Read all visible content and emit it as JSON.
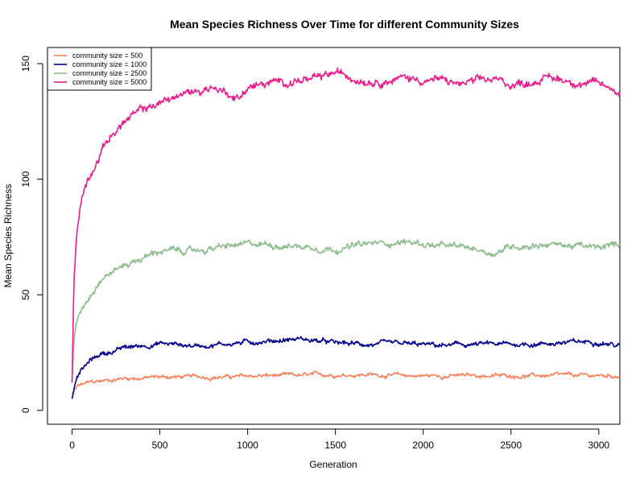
{
  "chart_data": {
    "type": "line",
    "title": "Mean Species Richness Over Time for different Community Sizes",
    "xlabel": "Generation",
    "ylabel": "Mean Species Richness",
    "xlim": [
      -140,
      3120
    ],
    "ylim": [
      -6,
      157
    ],
    "x_ticks": [
      0,
      500,
      1000,
      1500,
      2000,
      2500,
      3000
    ],
    "y_ticks": [
      0,
      50,
      100,
      150
    ],
    "grid": false,
    "legend_position": "top-left",
    "series": [
      {
        "name": "community size = 500",
        "color": "#F4845F",
        "x": [
          0,
          25,
          50,
          100,
          150,
          200,
          300,
          400,
          500,
          700,
          900,
          1100,
          1300,
          1500,
          1700,
          1900,
          2100,
          2300,
          2500,
          2700,
          2900,
          3000,
          3120
        ],
        "values": [
          7,
          10,
          11,
          12,
          12.5,
          13,
          14,
          14,
          14.5,
          14.5,
          14.5,
          15,
          15,
          15.5,
          15.5,
          15,
          15,
          15,
          15,
          15,
          15,
          15,
          15
        ],
        "noise": 0.8
      },
      {
        "name": "community size = 1000",
        "color": "#00008B",
        "x": [
          0,
          25,
          50,
          100,
          150,
          200,
          300,
          400,
          500,
          700,
          900,
          1100,
          1300,
          1500,
          1700,
          1900,
          2100,
          2300,
          2500,
          2700,
          2900,
          3000,
          3120
        ],
        "values": [
          5,
          14,
          17,
          21,
          24,
          25,
          27,
          28,
          29,
          28,
          29,
          30,
          31,
          29,
          28.5,
          28.5,
          28,
          28.5,
          28.5,
          29,
          29.5,
          30,
          28
        ],
        "noise": 1.0
      },
      {
        "name": "community size = 2500",
        "color": "#8FBC8F",
        "x": [
          0,
          10,
          25,
          50,
          100,
          150,
          200,
          300,
          400,
          500,
          600,
          700,
          900,
          1100,
          1300,
          1500,
          1700,
          1900,
          2100,
          2300,
          2400,
          2500,
          2700,
          2900,
          3000,
          3120
        ],
        "values": [
          12,
          30,
          38,
          44,
          50,
          56,
          59,
          63,
          66,
          69,
          69,
          69,
          71,
          72,
          71,
          70,
          72,
          73,
          71,
          70,
          68,
          71,
          72,
          71,
          70,
          72
        ],
        "noise": 1.3
      },
      {
        "name": "community size = 5000",
        "color": "#E91E8C",
        "x": [
          0,
          10,
          25,
          50,
          75,
          100,
          150,
          200,
          300,
          400,
          500,
          600,
          700,
          800,
          900,
          950,
          1000,
          1100,
          1200,
          1300,
          1400,
          1500,
          1600,
          1700,
          1800,
          1900,
          2000,
          2100,
          2200,
          2300,
          2400,
          2500,
          2600,
          2700,
          2800,
          2900,
          3000,
          3120
        ],
        "values": [
          12,
          55,
          75,
          90,
          97,
          102,
          110,
          117,
          125,
          130,
          133,
          136,
          138,
          140,
          137,
          135,
          140,
          141,
          142,
          143,
          143,
          146,
          144,
          143,
          143,
          144,
          143,
          143,
          141,
          142,
          143,
          141,
          142,
          144,
          143,
          142,
          141,
          138
        ],
        "noise": 1.6
      }
    ]
  }
}
